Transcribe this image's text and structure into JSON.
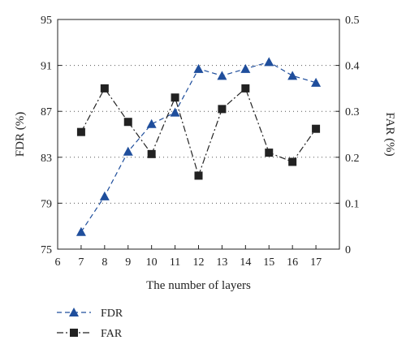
{
  "chart_data": {
    "type": "line",
    "x": [
      7,
      8,
      9,
      10,
      11,
      12,
      13,
      14,
      15,
      16,
      17
    ],
    "xlabel": "The number of layers",
    "ylabel_left": "FDR (%)",
    "ylabel_right": "FAR (%)",
    "xlim": [
      6,
      18
    ],
    "ylim_left": [
      75,
      95
    ],
    "ylim_right": [
      0,
      0.5
    ],
    "xticks": [
      "6",
      "7",
      "8",
      "9",
      "10",
      "11",
      "12",
      "13",
      "14",
      "15",
      "16",
      "17"
    ],
    "yticks_left": [
      "75",
      "79",
      "83",
      "87",
      "91",
      "95"
    ],
    "yticks_right": [
      "0",
      "0.1",
      "0.2",
      "0.3",
      "0.4",
      "0.5"
    ],
    "grid": "horizontal dotted",
    "legend_position": "bottom-left, below plot",
    "series": [
      {
        "name": "FDR",
        "axis": "left",
        "color": "#1f4e9c",
        "line_style": "dashed",
        "marker": "triangle",
        "values": [
          76.5,
          79.6,
          83.5,
          85.9,
          86.9,
          90.7,
          90.1,
          90.7,
          91.3,
          90.1,
          89.5
        ]
      },
      {
        "name": "FAR",
        "axis": "right",
        "color": "#222222",
        "line_style": "dash-dot",
        "marker": "square",
        "values": [
          0.255,
          0.35,
          0.277,
          0.207,
          0.33,
          0.16,
          0.305,
          0.35,
          0.21,
          0.19,
          0.262
        ]
      }
    ]
  }
}
